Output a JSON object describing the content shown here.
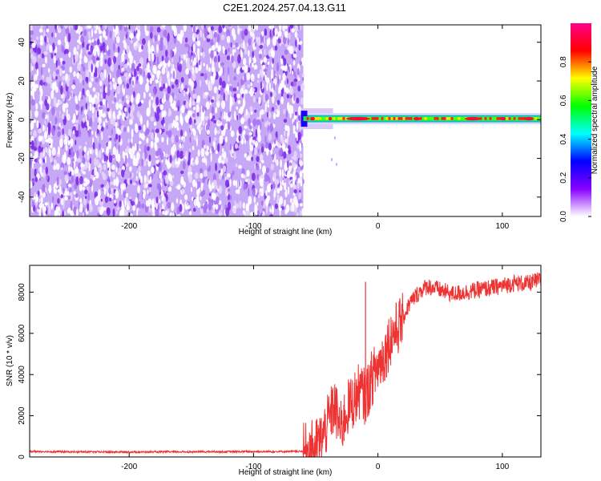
{
  "title": "C2E1.2024.257.04.13.G11",
  "chart_data": [
    {
      "type": "heatmap",
      "name": "spectrogram",
      "xlabel": "Height of straight line (km)",
      "ylabel": "Frequency (Hz)",
      "xlim": [
        -280,
        131
      ],
      "ylim": [
        -50,
        49
      ],
      "xticks": [
        -200,
        -100,
        0,
        100
      ],
      "xticklabels": [
        "-200",
        "-100",
        "0",
        "100"
      ],
      "yticks": [
        -40,
        -20,
        0,
        20,
        40
      ],
      "yticklabels": [
        "-40",
        "-20",
        "0",
        "20",
        "40"
      ],
      "noise_region_x": [
        -280,
        -60
      ],
      "carrier_frequency": 0.5,
      "carrier_x": [
        -60,
        131
      ],
      "colorbar": {
        "label": "Normalized spectral amplitude",
        "range": [
          0,
          1
        ],
        "ticks": [
          0.0,
          0.2,
          0.4,
          0.6,
          0.8
        ],
        "ticklabels": [
          "0.0",
          "0.2",
          "0.4",
          "0.6",
          "0.8"
        ],
        "colormap": [
          "#ffffff",
          "#8800ff",
          "#0000ff",
          "#00ffff",
          "#00ff00",
          "#ffff00",
          "#ff0000",
          "#ff0088"
        ]
      },
      "grid": false
    },
    {
      "type": "line",
      "name": "snr",
      "xlabel": "Height of straight line (km)",
      "ylabel": "SNR (10 * v/v)",
      "xlim": [
        -280,
        131
      ],
      "ylim": [
        0,
        9300
      ],
      "xticks": [
        -200,
        -100,
        0,
        100
      ],
      "xticklabels": [
        "-200",
        "-100",
        "0",
        "100"
      ],
      "yticks": [
        0,
        2000,
        4000,
        6000,
        8000
      ],
      "yticklabels": [
        "0",
        "2000",
        "4000",
        "6000",
        "8000"
      ],
      "line_color": "#ee3333",
      "grid": false,
      "series": [
        {
          "x": [
            -280,
            -250,
            -200,
            -150,
            -100,
            -60,
            -50,
            -45,
            -40,
            -35,
            -30,
            -25,
            -20,
            -15,
            -10,
            -5,
            0,
            5,
            10,
            15,
            20,
            25,
            30,
            35,
            40,
            50,
            60,
            70,
            80,
            90,
            100,
            110,
            120,
            131
          ],
          "y": [
            250,
            230,
            220,
            230,
            240,
            250,
            500,
            900,
            1700,
            2500,
            1300,
            2300,
            2700,
            3200,
            2900,
            3800,
            4400,
            4900,
            5800,
            6200,
            6700,
            7400,
            7800,
            8100,
            8300,
            8100,
            7900,
            8000,
            8100,
            8200,
            8300,
            8450,
            8400,
            8600
          ]
        }
      ]
    }
  ]
}
